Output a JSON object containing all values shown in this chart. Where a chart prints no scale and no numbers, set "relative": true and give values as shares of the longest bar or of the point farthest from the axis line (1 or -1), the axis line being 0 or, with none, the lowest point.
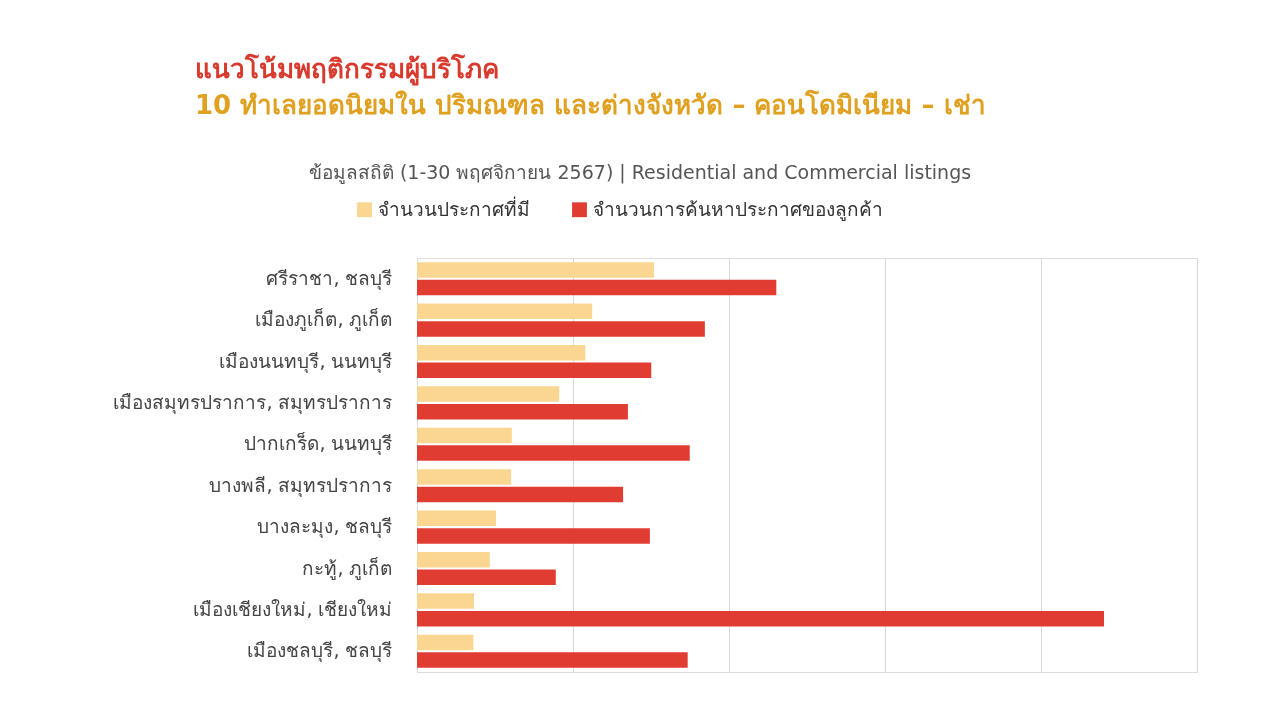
{
  "chart_data": {
    "type": "bar",
    "orientation": "horizontal",
    "relative": true,
    "title": "แนวโน้มพฤติกรรมผู้บริโภค",
    "subtitle": "10 ทำเลยอดนิยมใน ปริมณฑล และต่างจังหวัด – คอนโดมิเนียม – เช่า",
    "annotations": [
      "ข้อมูลสถิติ (1-30 พฤศจิกายน 2567) | Residential and Commercial listings"
    ],
    "categories": [
      "ศรีราชา, ชลบุรี",
      "เมืองภูเก็ต, ภูเก็ต",
      "เมืองนนทบุรี, นนทบุรี",
      "เมืองสมุทรปราการ, สมุทรปราการ",
      "ปากเกร็ด, นนทบุรี",
      "บางพลี, สมุทรปราการ",
      "บางละมุง, ชลบุรี",
      "กะทู้, ภูเก็ต",
      "เมืองเชียงใหม่, เชียงใหม่",
      "เมืองชลบุรี, ชลบุรี"
    ],
    "series": [
      {
        "name": "จำนวนประกาศที่มี",
        "color": "#fbd690",
        "values": [
          0.345,
          0.255,
          0.245,
          0.207,
          0.138,
          0.137,
          0.115,
          0.106,
          0.083,
          0.082
        ]
      },
      {
        "name": "จำนวนการค้นหาประกาศของลูกค้า",
        "color": "#e03c31",
        "values": [
          0.523,
          0.419,
          0.341,
          0.307,
          0.397,
          0.3,
          0.339,
          0.202,
          1,
          0.394
        ]
      }
    ],
    "grid": "x",
    "legend": "top"
  }
}
